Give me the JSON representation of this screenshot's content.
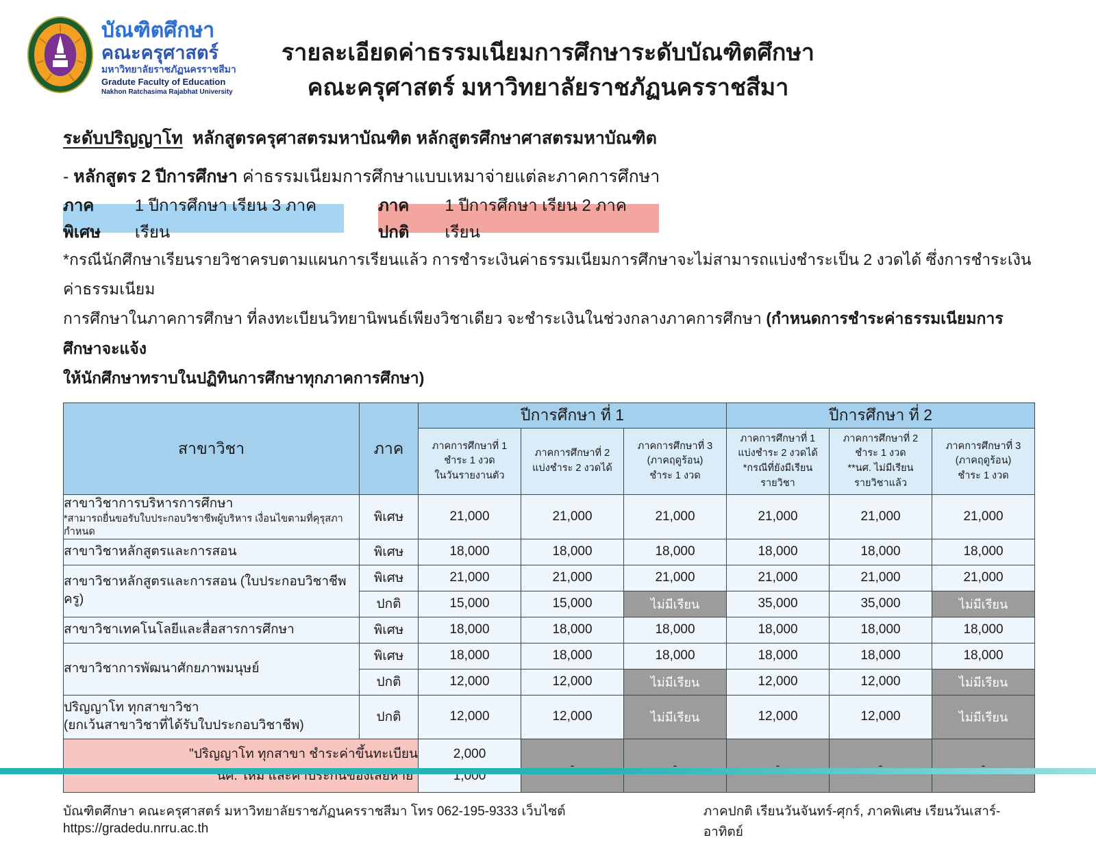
{
  "logo": {
    "line1": "บัณฑิตศึกษา",
    "line2": "คณะครุศาสตร์",
    "line3": "มหาวิทยาลัยราชภัฏนครราชสีมา",
    "line4": "Gradute Faculty of Education",
    "line5": "Nakhon Ratchasima Rajabhat University"
  },
  "title": {
    "line1": "รายละเอียดค่าธรรมเนียมการศึกษาระดับบัณฑิตศึกษา",
    "line2": "คณะครุศาสตร์ มหาวิทยาลัยราชภัฏนครราชสีมา"
  },
  "intro": {
    "degree_level": "ระดับปริญญาโท",
    "degree_programs": "หลักสูตรครุศาสตรมหาบัณฑิต หลักสูตรศึกษาศาสตรมหาบัณฑิต",
    "course_prefix": "- ",
    "course_bold": "หลักสูตร 2 ปีการศึกษา",
    "course_rest": " ค่าธรรมเนียมการศึกษาแบบเหมาจ่ายแต่ละภาคการศึกษา"
  },
  "badges": {
    "special_bold": "ภาคพิเศษ",
    "special_rest": "1 ปีการศึกษา เรียน 3 ภาคเรียน",
    "regular_bold": "ภาคปกติ",
    "regular_rest": "1 ปีการศึกษา เรียน 2 ภาคเรียน"
  },
  "note": {
    "line1": "*กรณีนักศึกษาเรียนรายวิชาครบตามแผนการเรียนแล้ว การชำระเงินค่าธรรมเนียมการศึกษาจะไม่สามารถแบ่งชำระเป็น 2 งวดได้ ซึ่งการชำระเงินค่าธรรมเนียม",
    "line2_normal": "การศึกษาในภาคการศึกษา ที่ลงทะเบียนวิทยานิพนธ์เพียงวิชาเดียว จะชำระเงินในช่วงกลางภาคการศึกษา ",
    "line2_bold": "(กำหนดการชำระค่าธรรมเนียมการศึกษาจะแจ้ง",
    "line3_bold": "ให้นักศึกษาทราบในปฏิทินการศึกษาทุกภาคการศึกษา)"
  },
  "table": {
    "head": {
      "major": "สาขาวิชา",
      "term": "ภาค",
      "year1": "ปีการศึกษา ที่ 1",
      "year2": "ปีการศึกษา ที่ 2",
      "sub": [
        [
          "ภาคการศึกษาที่ 1",
          "ชำระ 1 งวด",
          "ในวันรายงานตัว"
        ],
        [
          "ภาคการศึกษาที่ 2",
          "แบ่งชำระ 2 งวดได้"
        ],
        [
          "ภาคการศึกษาที่ 3",
          "(ภาคฤดูร้อน)",
          "ชำระ 1 งวด"
        ],
        [
          "ภาคการศึกษาที่ 1",
          "แบ่งชำระ 2 งวดได้",
          "*กรณีที่ยังมีเรียน",
          "รายวิชา"
        ],
        [
          "ภาคการศึกษาที่ 2",
          "ชำระ 1 งวด",
          "**นศ. ไม่มีเรียน",
          "รายวิชาแล้ว"
        ],
        [
          "ภาคการศึกษาที่ 3",
          "(ภาคฤดูร้อน)",
          "ชำระ 1 งวด"
        ]
      ]
    },
    "rows": [
      {
        "major": "สาขาวิชาการบริหารการศึกษา",
        "note": "*สามารถยื่นขอรับใบประกอบวิชาชีพผู้บริหาร เงื่อนไขตามที่คุรุสภากำหนด",
        "term": "พิเศษ",
        "fees": [
          "21,000",
          "21,000",
          "21,000",
          "21,000",
          "21,000",
          "21,000"
        ]
      },
      {
        "major": "สาขาวิชาหลักสูตรและการสอน",
        "term": "พิเศษ",
        "fees": [
          "18,000",
          "18,000",
          "18,000",
          "18,000",
          "18,000",
          "18,000"
        ]
      },
      {
        "major": "สาขาวิชาหลักสูตรและการสอน (ใบประกอบวิชาชีพครู)",
        "term": "พิเศษ",
        "fees": [
          "21,000",
          "21,000",
          "21,000",
          "21,000",
          "21,000",
          "21,000"
        ]
      },
      {
        "term": "ปกติ",
        "fees": [
          "15,000",
          "15,000",
          "ไม่มีเรียน",
          "35,000",
          "35,000",
          "ไม่มีเรียน"
        ]
      },
      {
        "major": "สาขาวิชาเทคโนโลยีและสื่อสารการศึกษา",
        "term": "พิเศษ",
        "fees": [
          "18,000",
          "18,000",
          "18,000",
          "18,000",
          "18,000",
          "18,000"
        ]
      },
      {
        "major": "สาขาวิชาการพัฒนาศักยภาพมนุษย์",
        "term": "พิเศษ",
        "fees": [
          "18,000",
          "18,000",
          "18,000",
          "18,000",
          "18,000",
          "18,000"
        ]
      },
      {
        "term": "ปกติ",
        "fees": [
          "12,000",
          "12,000",
          "ไม่มีเรียน",
          "12,000",
          "12,000",
          "ไม่มีเรียน"
        ]
      },
      {
        "major": "ปริญญาโท ทุกสาขาวิชา",
        "note": "(ยกเว้นสาขาวิชาที่ได้รับใบประกอบวิชาชีพ)",
        "term": "ปกติ",
        "fees": [
          "12,000",
          "12,000",
          "ไม่มีเรียน",
          "12,000",
          "12,000",
          "ไม่มีเรียน"
        ]
      }
    ],
    "registration": {
      "label_lines": [
        "\"ปริญญาโท ทุกสาขา ชำระค่าขึ้นทะเบียน",
        "นศ. ใหม่ และค่าประกันของเสียหาย\""
      ],
      "fee_lines": [
        "2,000",
        "1,000"
      ],
      "dashes": [
        "-",
        "-",
        "-",
        "-",
        "-"
      ]
    }
  },
  "footer": {
    "left": "บัณฑิตศึกษา คณะครุศาสตร์ มหาวิทยาลัยราชภัฏนครราชสีมา โทร 062-195-9333 เว็บไซต์ https://gradedu.nrru.ac.th",
    "right": "ภาคปกติ เรียนวันจันทร์-ศุกร์, ภาคพิเศษ เรียนวันเสาร์-อาทิตย์"
  },
  "colors": {
    "header_blue": "#a4cfed",
    "subheader_blue": "#d9ecf8",
    "row_light_blue": "#eef6fb",
    "badge_blue": "#a6d4f3",
    "badge_pink": "#f3a5a0",
    "registration_pink": "#f9c5c1",
    "no_class_gray": "#9c9c9c",
    "teal_bar": "#27b2b5"
  }
}
